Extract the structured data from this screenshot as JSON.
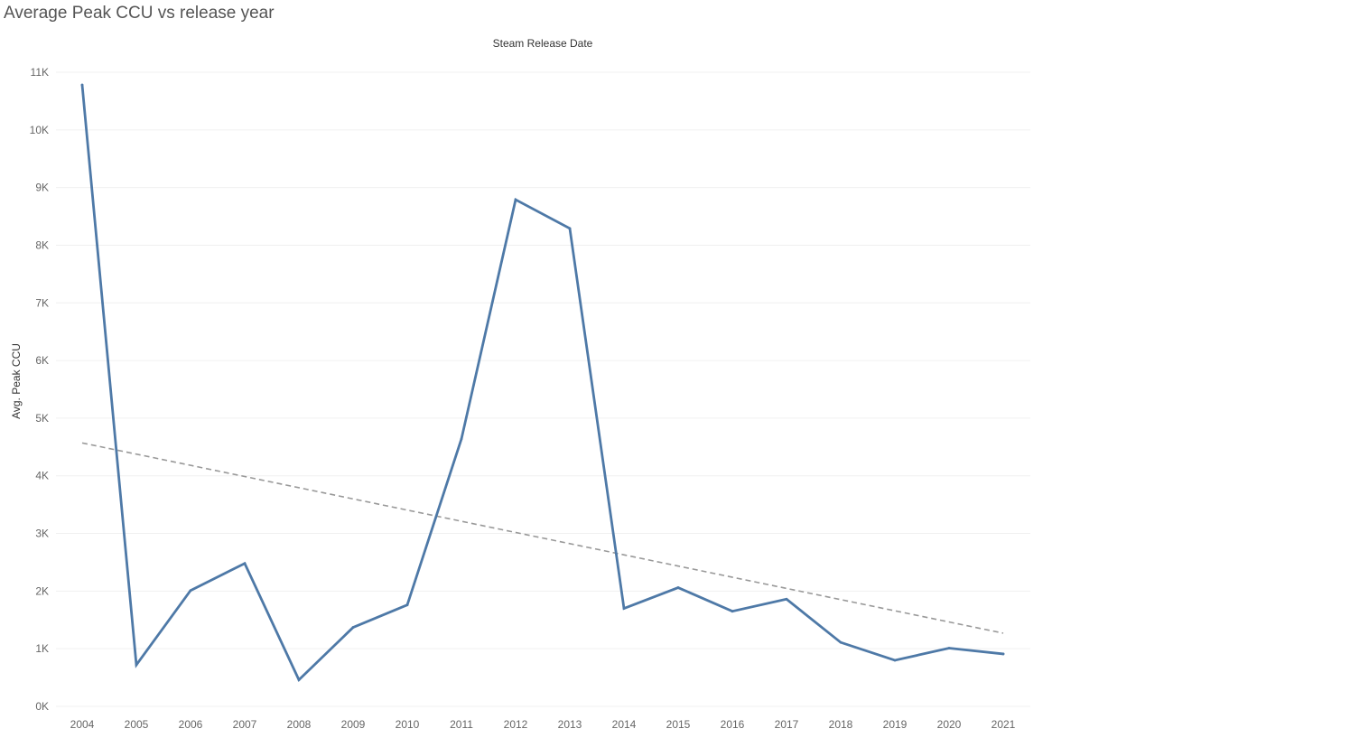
{
  "title": "Average Peak CCU vs release year",
  "chart_data": {
    "type": "line",
    "title": "Average Peak CCU vs release year",
    "xlabel": "Steam Release Date",
    "ylabel": "Avg. Peak CCU",
    "categories": [
      "2004",
      "2005",
      "2006",
      "2007",
      "2008",
      "2009",
      "2010",
      "2011",
      "2012",
      "2013",
      "2014",
      "2015",
      "2016",
      "2017",
      "2018",
      "2019",
      "2020",
      "2021"
    ],
    "series": [
      {
        "values": [
          10780,
          720,
          2010,
          2480,
          460,
          1370,
          1760,
          4640,
          8790,
          8290,
          1700,
          2060,
          1650,
          1860,
          1110,
          800,
          1010,
          910
        ],
        "color": "#4e79a7"
      }
    ],
    "trend_line": {
      "start": 4570,
      "end": 1270,
      "color": "#999999",
      "style": "dashed"
    },
    "y_ticks": [
      0,
      1000,
      2000,
      3000,
      4000,
      5000,
      6000,
      7000,
      8000,
      9000,
      10000,
      11000
    ],
    "y_tick_labels": [
      "0K",
      "1K",
      "2K",
      "3K",
      "4K",
      "5K",
      "6K",
      "7K",
      "8K",
      "9K",
      "10K",
      "11K"
    ],
    "ylim": [
      0,
      11000
    ],
    "grid": true,
    "legend": "none"
  }
}
